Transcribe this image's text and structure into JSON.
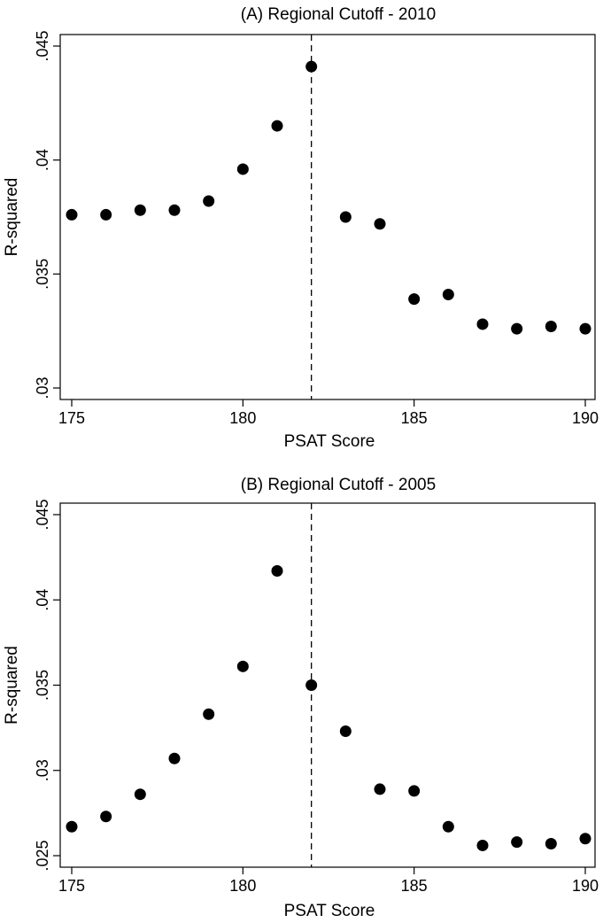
{
  "chart_data": [
    {
      "type": "scatter",
      "title": "(A) Regional Cutoff - 2010",
      "xlabel": "PSAT Score",
      "ylabel": "R-squared",
      "xlim": [
        175,
        190
      ],
      "ylim": [
        0.03,
        0.045
      ],
      "xticks": [
        175,
        180,
        185,
        190
      ],
      "xtick_labels": [
        "175",
        "180",
        "185",
        "190"
      ],
      "yticks": [
        0.03,
        0.035,
        0.04,
        0.045
      ],
      "ytick_labels": [
        ".03",
        ".035",
        ".04",
        ".045"
      ],
      "cutoff_line": {
        "x": 182,
        "style": "dashed"
      },
      "grid": false,
      "x": [
        175,
        176,
        177,
        178,
        179,
        180,
        181,
        182,
        183,
        184,
        185,
        186,
        187,
        188,
        189,
        190
      ],
      "y": [
        0.0376,
        0.0376,
        0.0378,
        0.0378,
        0.0382,
        0.0396,
        0.0415,
        0.0441,
        0.0375,
        0.0372,
        0.0339,
        0.0341,
        0.0328,
        0.0326,
        0.0327,
        0.0326
      ]
    },
    {
      "type": "scatter",
      "title": "(B) Regional Cutoff - 2005",
      "xlabel": "PSAT Score",
      "ylabel": "R-squared",
      "xlim": [
        175,
        190
      ],
      "ylim": [
        0.025,
        0.045
      ],
      "xticks": [
        175,
        180,
        185,
        190
      ],
      "xtick_labels": [
        "175",
        "180",
        "185",
        "190"
      ],
      "yticks": [
        0.025,
        0.03,
        0.035,
        0.04,
        0.045
      ],
      "ytick_labels": [
        ".025",
        ".03",
        ".035",
        ".04",
        ".045"
      ],
      "cutoff_line": {
        "x": 182,
        "style": "dashed"
      },
      "grid": false,
      "x": [
        175,
        176,
        177,
        178,
        179,
        180,
        181,
        182,
        183,
        184,
        185,
        186,
        187,
        188,
        189,
        190
      ],
      "y": [
        0.0267,
        0.0273,
        0.0286,
        0.0307,
        0.0333,
        0.0361,
        0.0417,
        0.035,
        0.0323,
        0.0289,
        0.0288,
        0.0267,
        0.0256,
        0.0258,
        0.0257,
        0.026
      ]
    }
  ]
}
